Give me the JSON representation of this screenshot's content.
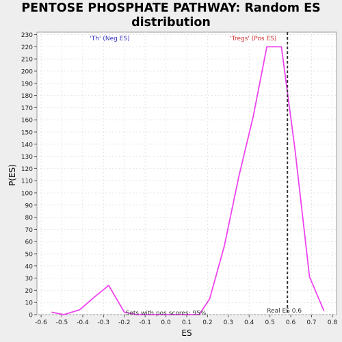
{
  "chart_data": {
    "type": "line",
    "title_line1": "PENTOSE PHOSPHATE PATHWAY: Random ES",
    "title_line2": "distribution",
    "xlabel": "ES",
    "ylabel": "P(ES)",
    "xlim": [
      -0.62,
      0.82
    ],
    "ylim": [
      0,
      232
    ],
    "xticks": [
      -0.6,
      -0.5,
      -0.4,
      -0.3,
      -0.2,
      -0.1,
      0.0,
      0.1,
      0.2,
      0.3,
      0.4,
      0.5,
      0.6,
      0.7,
      0.8
    ],
    "xtick_labels": [
      "-0.6",
      "-0.5",
      "-0.4",
      "-0.3",
      "-0.2",
      "-0.1",
      "0.0",
      "0.1",
      "0.2",
      "0.3",
      "0.4",
      "0.5",
      "0.6",
      "0.7",
      "0.8"
    ],
    "yticks": [
      0,
      10,
      20,
      30,
      40,
      50,
      60,
      70,
      80,
      90,
      100,
      110,
      120,
      130,
      140,
      150,
      160,
      170,
      180,
      190,
      200,
      210,
      220,
      230
    ],
    "grid": true,
    "series": [
      {
        "color": "#ee44ee",
        "x": [
          -0.55,
          -0.49,
          -0.415,
          -0.34,
          -0.275,
          -0.2,
          -0.14,
          -0.08,
          -0.02,
          0.04,
          0.1,
          0.16,
          0.21,
          0.28,
          0.35,
          0.42,
          0.485,
          0.555,
          0.62,
          0.69,
          0.76
        ],
        "y": [
          2,
          0,
          4,
          15,
          24,
          2,
          0,
          0,
          0,
          0,
          0,
          0,
          13,
          56,
          113,
          163,
          220,
          220,
          136,
          31,
          3
        ]
      }
    ],
    "real_es": {
      "x": 0.584,
      "label": "Real ES 0.6",
      "color": "#333333"
    },
    "annotations": [
      {
        "text": "'Th' (Neg ES)",
        "color": "#3333bb",
        "x": -0.27,
        "y": 227
      },
      {
        "text": "'Tregs' (Pos ES)",
        "color": "#cc3333",
        "x": 0.42,
        "y": 227
      },
      {
        "text": "Sets with pos scores: 95%",
        "color": "#333333",
        "x": -0.0,
        "y": 1.5
      }
    ]
  }
}
